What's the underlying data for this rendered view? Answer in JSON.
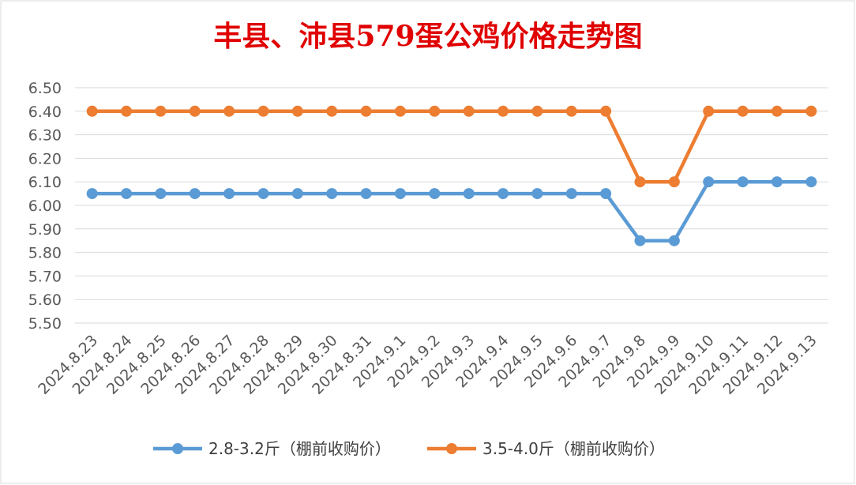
{
  "chart_data": {
    "type": "line",
    "title": "丰县、沛县579蛋公鸡价格走势图",
    "xlabel": "",
    "ylabel": "",
    "categories": [
      "2024.8.23",
      "2024.8.24",
      "2024.8.25",
      "2024.8.26",
      "2024.8.27",
      "2024.8.28",
      "2024.8.29",
      "2024.8.30",
      "2024.8.31",
      "2024.9.1",
      "2024.9.2",
      "2024.9.3",
      "2024.9.4",
      "2024.9.5",
      "2024.9.6",
      "2024.9.7",
      "2024.9.8",
      "2024.9.9",
      "2024.9.10",
      "2024.9.11",
      "2024.9.12",
      "2024.9.13"
    ],
    "series": [
      {
        "name": "2.8-3.2斤（棚前收购价）",
        "color": "#5b9bd5",
        "values": [
          6.05,
          6.05,
          6.05,
          6.05,
          6.05,
          6.05,
          6.05,
          6.05,
          6.05,
          6.05,
          6.05,
          6.05,
          6.05,
          6.05,
          6.05,
          6.05,
          5.85,
          5.85,
          6.1,
          6.1,
          6.1,
          6.1
        ]
      },
      {
        "name": "3.5-4.0斤（棚前收购价）",
        "color": "#ed7d31",
        "values": [
          6.4,
          6.4,
          6.4,
          6.4,
          6.4,
          6.4,
          6.4,
          6.4,
          6.4,
          6.4,
          6.4,
          6.4,
          6.4,
          6.4,
          6.4,
          6.4,
          6.1,
          6.1,
          6.4,
          6.4,
          6.4,
          6.4
        ]
      }
    ],
    "ylim": [
      5.5,
      6.5
    ],
    "yticks": [
      "6.50",
      "6.40",
      "6.30",
      "6.20",
      "6.10",
      "6.00",
      "5.90",
      "5.80",
      "5.70",
      "5.60",
      "5.50"
    ],
    "grid": true,
    "legend_position": "bottom"
  }
}
